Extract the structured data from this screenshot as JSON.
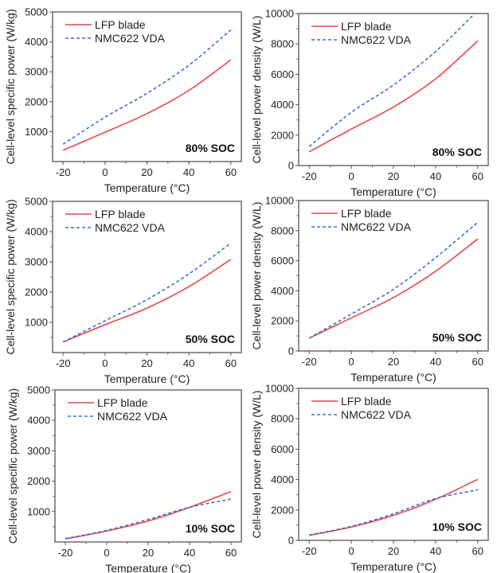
{
  "chart_data": [
    {
      "type": "line",
      "panel_label": "80% SOC",
      "xlabel": "Temperature (°C)",
      "ylabel": "Cell-level specific power (W/kg)",
      "xlim": [
        -25,
        65
      ],
      "ylim": [
        0,
        5000
      ],
      "xticks": [
        -20,
        0,
        20,
        40,
        60
      ],
      "yticks": [
        1000,
        2000,
        3000,
        4000,
        5000
      ],
      "xtick_labels": [
        "-20",
        "0",
        "20",
        "40",
        "60"
      ],
      "ytick_labels": [
        "1000",
        "2000",
        "3000",
        "4000",
        "5000"
      ],
      "x": [
        -20,
        0,
        20,
        40,
        60
      ],
      "series": [
        {
          "name": "LFP blade",
          "values": [
            380,
            980,
            1600,
            2380,
            3400
          ]
        },
        {
          "name": "NMC622 VDA",
          "values": [
            580,
            1480,
            2280,
            3220,
            4400
          ]
        }
      ],
      "legend": "top-left"
    },
    {
      "type": "line",
      "panel_label": "80% SOC",
      "xlabel": "Temperature (°C)",
      "ylabel": "Cell-level power density (W/L)",
      "xlim": [
        -25,
        65
      ],
      "ylim": [
        0,
        10000
      ],
      "xticks": [
        -20,
        0,
        20,
        40,
        60
      ],
      "yticks": [
        0,
        2000,
        4000,
        6000,
        8000,
        10000
      ],
      "xtick_labels": [
        "-20",
        "0",
        "20",
        "40",
        "60"
      ],
      "ytick_labels": [
        "0",
        "2000",
        "4000",
        "6000",
        "8000",
        "10000"
      ],
      "x": [
        -20,
        0,
        20,
        40,
        60
      ],
      "series": [
        {
          "name": "LFP blade",
          "values": [
            900,
            2400,
            3850,
            5700,
            8200
          ]
        },
        {
          "name": "NMC622 VDA",
          "values": [
            1250,
            3500,
            5300,
            7500,
            10200
          ]
        }
      ],
      "legend": "top-left"
    },
    {
      "type": "line",
      "panel_label": "50% SOC",
      "xlabel": "Temperature (°C)",
      "ylabel": "Cell-level specific power (W/kg)",
      "xlim": [
        -25,
        65
      ],
      "ylim": [
        0,
        5000
      ],
      "xticks": [
        -20,
        0,
        20,
        40,
        60
      ],
      "yticks": [
        1000,
        2000,
        3000,
        4000,
        5000
      ],
      "xtick_labels": [
        "-20",
        "0",
        "20",
        "40",
        "60"
      ],
      "ytick_labels": [
        "1000",
        "2000",
        "3000",
        "4000",
        "5000"
      ],
      "x": [
        -20,
        0,
        20,
        40,
        60
      ],
      "series": [
        {
          "name": "LFP blade",
          "values": [
            350,
            920,
            1470,
            2180,
            3080
          ]
        },
        {
          "name": "NMC622 VDA",
          "values": [
            350,
            1050,
            1750,
            2600,
            3620
          ]
        }
      ],
      "legend": "top-left"
    },
    {
      "type": "line",
      "panel_label": "50% SOC",
      "xlabel": "Temperature (°C)",
      "ylabel": "Cell-level power density (W/L)",
      "xlim": [
        -25,
        65
      ],
      "ylim": [
        0,
        10000
      ],
      "xticks": [
        -20,
        0,
        20,
        40,
        60
      ],
      "yticks": [
        0,
        2000,
        4000,
        6000,
        8000,
        10000
      ],
      "xtick_labels": [
        "-20",
        "0",
        "20",
        "40",
        "60"
      ],
      "ytick_labels": [
        "0",
        "2000",
        "4000",
        "6000",
        "8000",
        "10000"
      ],
      "x": [
        -20,
        0,
        20,
        40,
        60
      ],
      "series": [
        {
          "name": "LFP blade",
          "values": [
            850,
            2200,
            3550,
            5300,
            7450
          ]
        },
        {
          "name": "NMC622 VDA",
          "values": [
            850,
            2450,
            4100,
            6200,
            8550
          ]
        }
      ],
      "legend": "top-left"
    },
    {
      "type": "line",
      "panel_label": "10% SOC",
      "xlabel": "Temperature (°C)",
      "ylabel": "Cell-level specific power (W/kg)",
      "xlim": [
        -25,
        65
      ],
      "ylim": [
        0,
        5000
      ],
      "xticks": [
        -20,
        0,
        20,
        40,
        60
      ],
      "yticks": [
        1000,
        2000,
        3000,
        4000,
        5000
      ],
      "xtick_labels": [
        "-20",
        "0",
        "20",
        "40",
        "60"
      ],
      "ytick_labels": [
        "1000",
        "2000",
        "3000",
        "4000",
        "5000"
      ],
      "x": [
        -20,
        0,
        20,
        40,
        60
      ],
      "series": [
        {
          "name": "LFP blade",
          "values": [
            100,
            360,
            690,
            1140,
            1660
          ]
        },
        {
          "name": "NMC622 VDA",
          "values": [
            110,
            380,
            740,
            1140,
            1410
          ]
        }
      ],
      "legend": "top-left"
    },
    {
      "type": "line",
      "panel_label": "10% SOC",
      "xlabel": "Temperature (°C)",
      "ylabel": "Cell-level power density (W/L)",
      "xlim": [
        -25,
        65
      ],
      "ylim": [
        0,
        10000
      ],
      "xticks": [
        -20,
        0,
        20,
        40,
        60
      ],
      "yticks": [
        0,
        2000,
        4000,
        6000,
        8000,
        10000
      ],
      "xtick_labels": [
        "-20",
        "0",
        "20",
        "40",
        "60"
      ],
      "ytick_labels": [
        "0",
        "2000",
        "4000",
        "6000",
        "8000",
        "10000"
      ],
      "x": [
        -20,
        0,
        20,
        40,
        60
      ],
      "series": [
        {
          "name": "LFP blade",
          "values": [
            330,
            880,
            1650,
            2700,
            4020
          ]
        },
        {
          "name": "NMC622 VDA",
          "values": [
            350,
            920,
            1750,
            2750,
            3320
          ]
        }
      ],
      "legend": "top-left"
    }
  ],
  "colors": {
    "lfp": "#e8474a",
    "nmc": "#3a6fd0",
    "axis": "#555555"
  }
}
